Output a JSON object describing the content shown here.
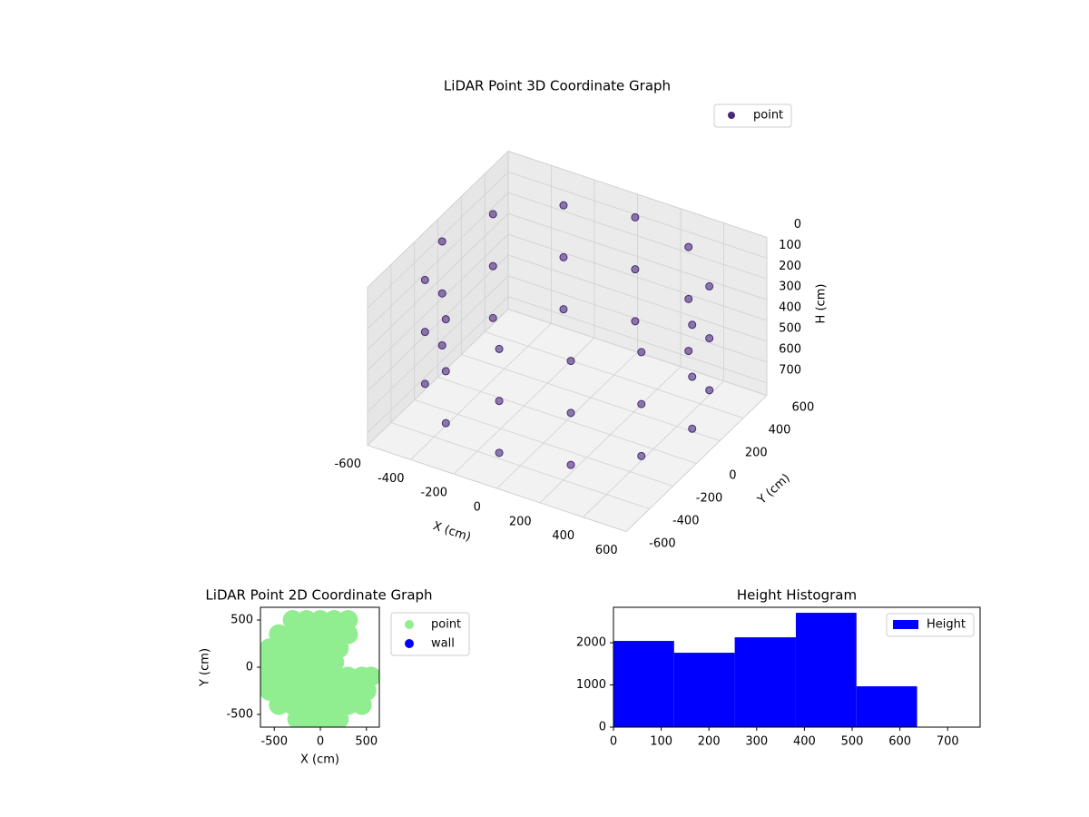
{
  "chart_data": [
    {
      "type": "scatter3d",
      "title": "LiDAR Point 3D Coordinate Graph",
      "xlabel": "X (cm)",
      "ylabel": "Y (cm)",
      "zlabel": "H (cm)",
      "xlim": [
        -600,
        600
      ],
      "ylim": [
        -600,
        600
      ],
      "zlim": [
        760,
        0
      ],
      "xticks": [
        -600,
        -400,
        -200,
        0,
        200,
        400,
        600
      ],
      "yticks": [
        -600,
        -400,
        -200,
        0,
        200,
        400,
        600
      ],
      "zticks": [
        0,
        100,
        200,
        300,
        400,
        500,
        600,
        700
      ],
      "series": [
        {
          "name": "point",
          "color": "#482878",
          "x": [
            580,
            502,
            290,
            0,
            -290,
            -502,
            -580,
            -502,
            -290,
            0,
            290,
            502,
            580,
            502,
            290,
            0,
            -290,
            -502,
            -580,
            -502,
            -290,
            0,
            290,
            502,
            580,
            502,
            290,
            0,
            -290,
            -502,
            -580,
            -502,
            -290,
            0,
            290,
            502
          ],
          "y": [
            0,
            290,
            502,
            580,
            502,
            290,
            0,
            -290,
            -502,
            -580,
            -502,
            -290,
            0,
            290,
            502,
            580,
            502,
            290,
            0,
            -290,
            -502,
            -580,
            -502,
            -290,
            0,
            290,
            502,
            580,
            502,
            290,
            0,
            -290,
            -502,
            -580,
            -502,
            -290
          ],
          "z": [
            100,
            100,
            100,
            100,
            100,
            100,
            100,
            100,
            100,
            100,
            100,
            100,
            350,
            350,
            350,
            350,
            350,
            350,
            350,
            350,
            350,
            350,
            350,
            350,
            600,
            600,
            600,
            600,
            600,
            600,
            600,
            600,
            600,
            600,
            600,
            600
          ]
        }
      ]
    },
    {
      "type": "scatter",
      "title": "LiDAR Point 2D Coordinate Graph",
      "xlabel": "X (cm)",
      "ylabel": "Y (cm)",
      "xlim": [
        -650,
        640
      ],
      "ylim": [
        -635,
        635
      ],
      "xticks": [
        -500,
        0,
        500
      ],
      "yticks": [
        -500,
        0,
        500
      ],
      "series": [
        {
          "name": "point",
          "color": "#90ee90",
          "x": [
            -300,
            -150,
            0,
            150,
            300,
            -450,
            -300,
            -150,
            0,
            150,
            300,
            -550,
            -400,
            -250,
            -100,
            50,
            200,
            -600,
            -450,
            -300,
            -150,
            0,
            150,
            -600,
            -450,
            -300,
            -150,
            0,
            150,
            300,
            450,
            550,
            -550,
            -400,
            -250,
            -100,
            50,
            200,
            350,
            500,
            -450,
            -300,
            -150,
            0,
            150,
            300,
            450,
            -250,
            -100,
            50,
            200
          ],
          "y": [
            500,
            500,
            500,
            500,
            500,
            350,
            350,
            350,
            350,
            350,
            350,
            200,
            200,
            200,
            200,
            200,
            200,
            50,
            50,
            50,
            50,
            50,
            50,
            -100,
            -100,
            -100,
            -100,
            -100,
            -100,
            -100,
            -100,
            -100,
            -250,
            -250,
            -250,
            -250,
            -250,
            -250,
            -250,
            -250,
            -400,
            -400,
            -400,
            -400,
            -400,
            -400,
            -400,
            -550,
            -550,
            -550,
            -550
          ]
        },
        {
          "name": "wall",
          "color": "#0000ff",
          "x": [],
          "y": []
        }
      ]
    },
    {
      "type": "histogram",
      "title": "Height Histogram",
      "bins": [
        0,
        127,
        254,
        382,
        509,
        636
      ],
      "values": [
        2043,
        1763,
        2129,
        2710,
        968
      ],
      "name": "Height",
      "color": "#0000ff",
      "xlim": [
        0,
        768
      ],
      "ylim": [
        0,
        2840
      ],
      "xticks": [
        0,
        100,
        200,
        300,
        400,
        500,
        600,
        700
      ],
      "yticks": [
        0,
        1000,
        2000
      ]
    }
  ]
}
